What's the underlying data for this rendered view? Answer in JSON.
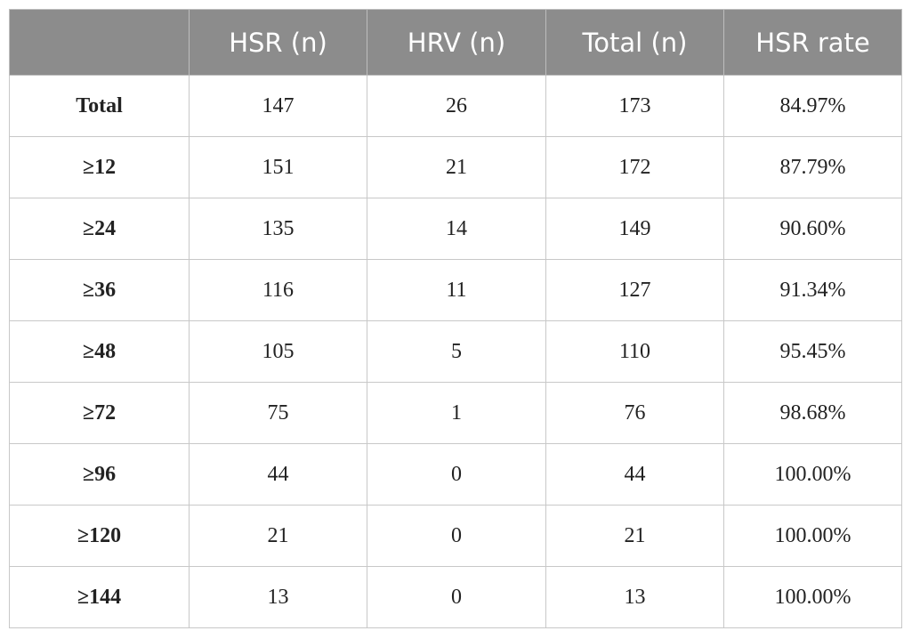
{
  "table": {
    "columns": [
      "HSR (n)",
      "HRV (n)",
      "Total (n)",
      "HSR rate"
    ],
    "rows": [
      [
        "Total",
        "147",
        "26",
        "173",
        "84.97%"
      ],
      [
        "≥12",
        "151",
        "21",
        "172",
        "87.79%"
      ],
      [
        "≥24",
        "135",
        "14",
        "149",
        "90.60%"
      ],
      [
        "≥36",
        "116",
        "11",
        "127",
        "91.34%"
      ],
      [
        "≥48",
        "105",
        "5",
        "110",
        "95.45%"
      ],
      [
        "≥72",
        "75",
        "1",
        "76",
        "98.68%"
      ],
      [
        "≥96",
        "44",
        "0",
        "44",
        "100.00%"
      ],
      [
        "≥120",
        "21",
        "0",
        "21",
        "100.00%"
      ],
      [
        "≥144",
        "13",
        "0",
        "13",
        "100.00%"
      ]
    ]
  }
}
